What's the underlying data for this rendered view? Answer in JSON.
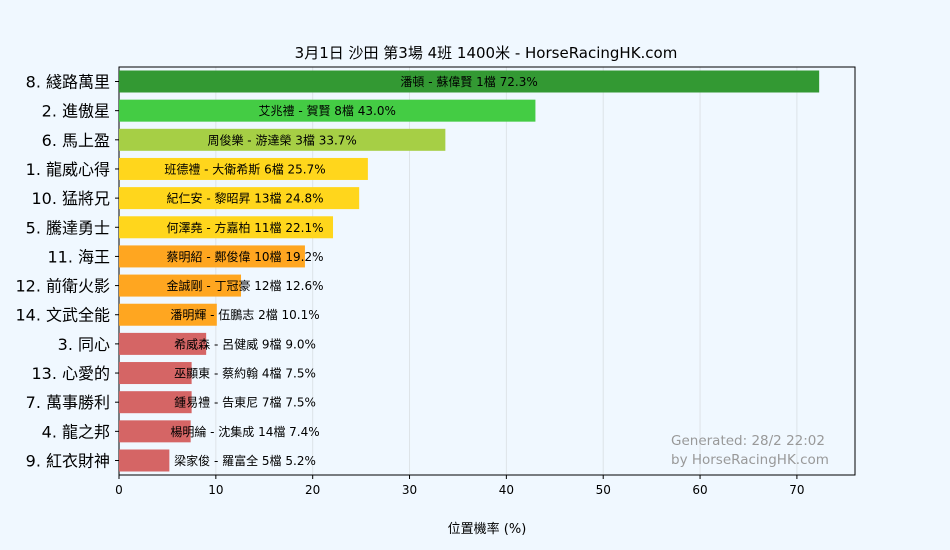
{
  "chart_data": {
    "type": "bar",
    "orientation": "horizontal",
    "title": "3月1日  沙田  第3場  4班  1400米 - HorseRacingHK.com",
    "xlabel": "位置機率 (%)",
    "ylabel": "",
    "xlim": [
      0,
      76
    ],
    "xticks": [
      "0",
      "10",
      "20",
      "30",
      "40",
      "50",
      "60",
      "70"
    ],
    "grid": true,
    "categories": [
      "8. 綫路萬里",
      "2. 進傲星",
      "6. 馬上盈",
      "1. 龍威心得",
      "10. 猛將兄",
      "5. 騰達勇士",
      "11. 海王",
      "12. 前衛火影",
      "14. 文武全能",
      "3. 同心",
      "13. 心愛的",
      "7. 萬事勝利",
      "4. 龍之邦",
      "9. 紅衣財神"
    ],
    "values": [
      72.3,
      43.0,
      33.7,
      25.7,
      24.8,
      22.1,
      19.2,
      12.6,
      10.1,
      9.0,
      7.5,
      7.5,
      7.4,
      5.2
    ],
    "labels": [
      "潘頓 - 蘇偉賢 1檔  72.3%",
      "艾兆禮 - 賀賢 8檔  43.0%",
      "周俊樂 - 游達榮 3檔  33.7%",
      "班德禮 - 大衛希斯 6檔  25.7%",
      "紀仁安 - 黎昭昇 13檔  24.8%",
      "何澤堯 - 方嘉柏 11檔  22.1%",
      "蔡明紹 - 鄭俊偉 10檔  19.2%",
      "金誠剛 - 丁冠豪 12檔  12.6%",
      "潘明輝 - 伍鵬志 2檔  10.1%",
      "希威森 - 呂健威 9檔  9.0%",
      "巫顯東 - 蔡約翰 4檔  7.5%",
      "鍾易禮 - 告東尼 7檔  7.5%",
      "楊明綸 - 沈集成 14檔  7.4%",
      "梁家俊 - 羅富全 5檔  5.2%"
    ],
    "colors": [
      "#339933",
      "#44cc44",
      "#a6cf45",
      "#ffd61c",
      "#ffd61c",
      "#ffd61c",
      "#ffa620",
      "#ffa620",
      "#ffa620",
      "#d56565",
      "#d56565",
      "#d56565",
      "#d56565",
      "#d56565"
    ],
    "watermark": [
      "Generated: 28/2 22:02",
      "by HorseRacingHK.com"
    ]
  }
}
